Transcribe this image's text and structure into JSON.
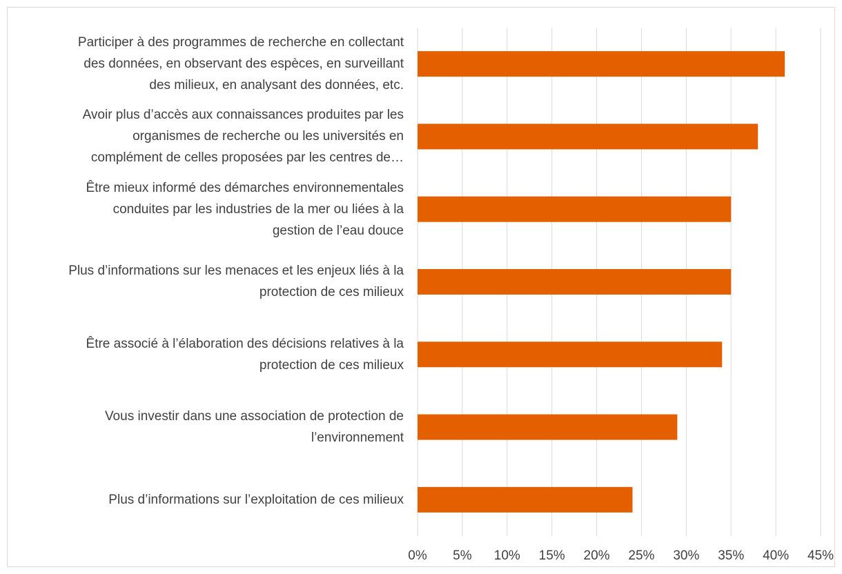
{
  "chart_data": {
    "type": "barh",
    "categories": [
      "Participer à des programmes de recherche en collectant\ndes données, en observant des espèces, en surveillant\ndes milieux, en analysant des données, etc.",
      "Avoir plus d’accès aux connaissances produites par les\norganismes de recherche ou les universités en\ncomplément de celles proposées par les centres de…",
      "Être mieux informé des démarches environnementales\nconduites par les industries de la mer ou liées à la\ngestion de l’eau douce",
      "Plus d’informations sur les menaces et les enjeux liés à la\nprotection de ces milieux",
      "Être associé à l’élaboration des décisions relatives à la\nprotection de ces milieux",
      "Vous investir dans une association de protection de\nl’environnement",
      "Plus d’informations sur l’exploitation de ces milieux"
    ],
    "values": [
      41,
      38,
      35,
      35,
      34,
      29,
      24
    ],
    "color": "#e35f00",
    "xlim": [
      0,
      45
    ],
    "xticks": [
      {
        "value": 0,
        "label": "0%"
      },
      {
        "value": 5,
        "label": "5%"
      },
      {
        "value": 10,
        "label": "10%"
      },
      {
        "value": 15,
        "label": "15%"
      },
      {
        "value": 20,
        "label": "20%"
      },
      {
        "value": 25,
        "label": "25%"
      },
      {
        "value": 30,
        "label": "30%"
      },
      {
        "value": 35,
        "label": "35%"
      },
      {
        "value": 40,
        "label": "40%"
      },
      {
        "value": 45,
        "label": "45%"
      }
    ],
    "grid": true
  }
}
